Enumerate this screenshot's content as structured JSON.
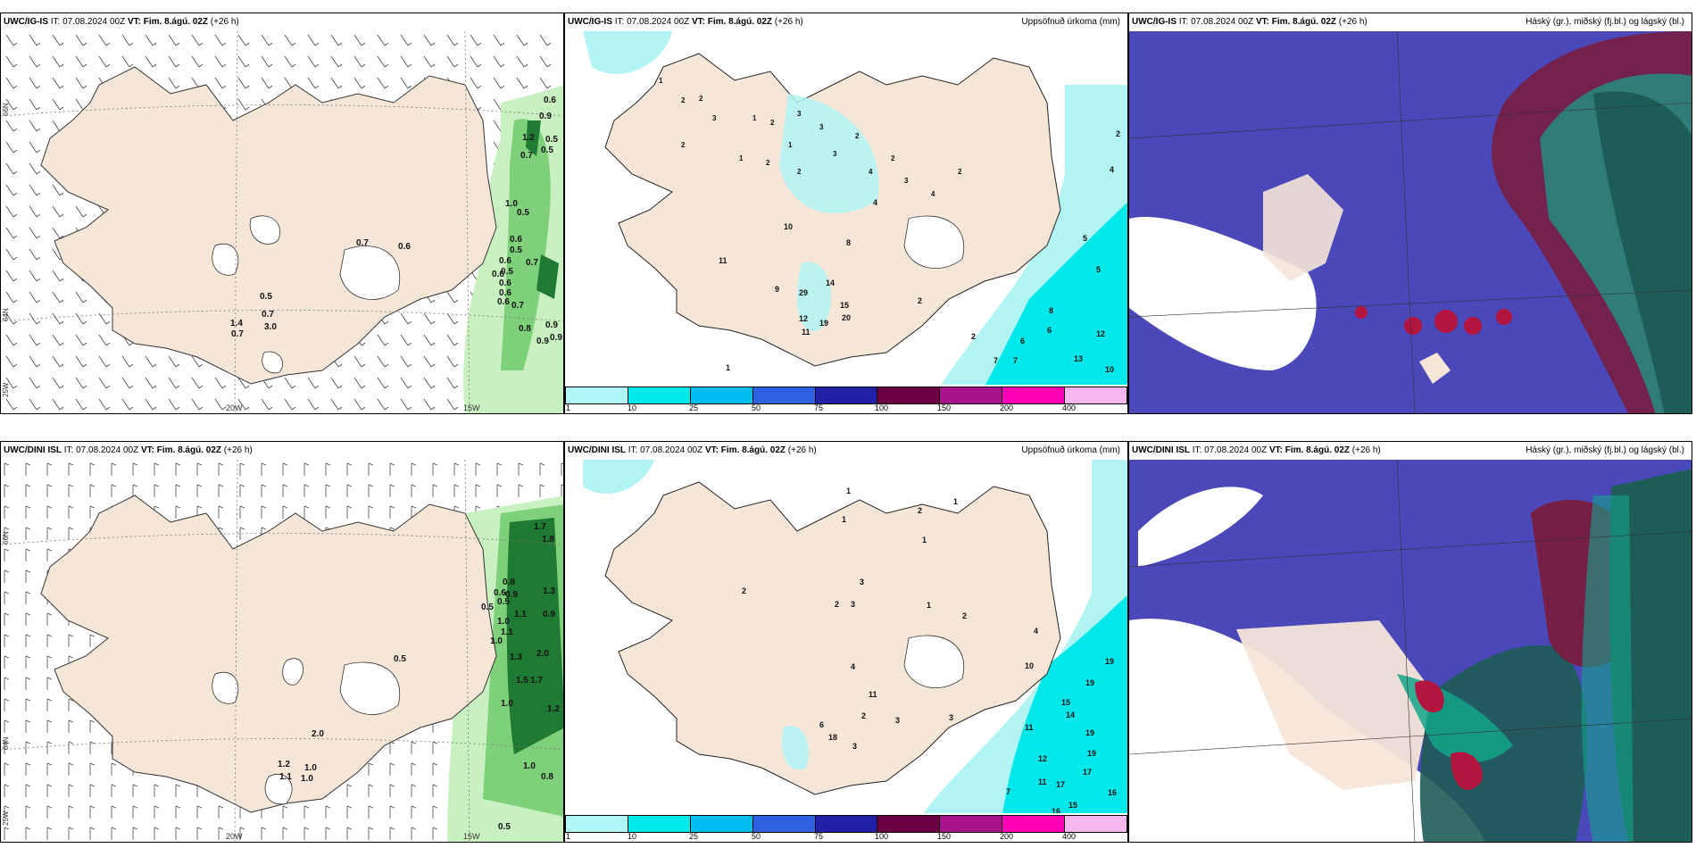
{
  "colors": {
    "land": "#f5e6d8",
    "precip_light": "#b2f3f3",
    "precip_mid": "#00e8ea",
    "wind_green_light": "#c8f0c0",
    "wind_green_mid": "#7ed07a",
    "wind_green_dark": "#1f7a33",
    "cloud_high": "#7a1a3a",
    "cloud_mid": "#13a48a",
    "cloud_low": "#4b49b9",
    "colorbar": [
      "#b0f8f8",
      "#00eaea",
      "#00bdf0",
      "#2f62e0",
      "#2121a8",
      "#6c0045",
      "#a8128c",
      "#ff00b4",
      "#f6b6ee"
    ]
  },
  "colorbar_labels": [
    "1",
    "10",
    "25",
    "50",
    "75",
    "100",
    "150",
    "200",
    "400"
  ],
  "panels": {
    "top_left": {
      "model": "UWC/IG-IS",
      "it_text": "IT: 07.08.2024 00Z",
      "vt_bold": "VT: Fim. 8.ágú. 02Z",
      "lead": "(+26 h)",
      "right_title": "",
      "lon_labels": [
        "20W",
        "15W"
      ],
      "lat_labels": [
        "66N",
        "64N",
        "25W"
      ],
      "values": [
        "0.6",
        "0.9",
        "1.2",
        "0.5",
        "0.5",
        "0.7",
        "1.0",
        "0.5",
        "0.6",
        "0.5",
        "0.6",
        "0.7",
        "0.5",
        "0.6",
        "0.6",
        "0.6",
        "0.6",
        "0.7",
        "0.8",
        "0.9",
        "0.9",
        "0.9",
        "0.7",
        "0.6",
        "0.5",
        "1.4",
        "0.7",
        "0.7",
        "3.0"
      ]
    },
    "top_mid": {
      "model": "UWC/IG-IS",
      "it_text": "IT: 07.08.2024 00Z",
      "vt_bold": "VT: Fim. 8.ágú. 02Z",
      "lead": "(+26 h)",
      "right_title": "Uppsöfnuð úrkoma (mm)",
      "values": [
        "1",
        "2",
        "2",
        "3",
        "1",
        "2",
        "2",
        "3",
        "3",
        "1",
        "1",
        "2",
        "2",
        "3",
        "2",
        "4",
        "2",
        "3",
        "4",
        "2",
        "29",
        "14",
        "15",
        "12",
        "19",
        "20",
        "10",
        "11",
        "9",
        "11",
        "12",
        "6",
        "8",
        "13",
        "10",
        "7",
        "7",
        "4",
        "5",
        "5",
        "2",
        "1",
        "2",
        "6",
        "8",
        "4",
        "2"
      ]
    },
    "top_right": {
      "model": "UWC/IG-IS",
      "it_text": "IT: 07.08.2024 00Z",
      "vt_bold": "VT: Fim. 8.ágú. 02Z",
      "lead": "(+26 h)",
      "right_title": "Háský (gr.), miðský (fj.bl.) og lágský (bl.)"
    },
    "bot_left": {
      "model": "UWC/DINI ISL",
      "it_text": "IT: 07.08.2024 00Z",
      "vt_bold": "VT: Fim. 8.ágú. 02Z",
      "lead": "(+26 h)",
      "right_title": "",
      "lon_labels": [
        "20W",
        "15W"
      ],
      "lat_labels": [
        "66N",
        "64N",
        "25W"
      ],
      "values": [
        "1.7",
        "1.8",
        "0.8",
        "0.6",
        "0.9",
        "1.3",
        "0.5",
        "1.1",
        "0.9",
        "1.0",
        "1.1",
        "1.0",
        "1.3",
        "2.0",
        "1.5",
        "1.7",
        "1.0",
        "1.2",
        "1.0",
        "0.8",
        "0.5",
        "0.5",
        "1.2",
        "1.1",
        "1.0",
        "1.0",
        "2.0",
        "0.5"
      ]
    },
    "bot_mid": {
      "model": "UWC/DINI ISL",
      "it_text": "IT: 07.08.2024 00Z",
      "vt_bold": "VT: Fim. 8.ágú. 02Z",
      "lead": "(+26 h)",
      "right_title": "Uppsöfnuð úrkoma (mm)",
      "values": [
        "1",
        "1",
        "2",
        "1",
        "1",
        "3",
        "2",
        "2",
        "3",
        "1",
        "2",
        "4",
        "11",
        "6",
        "18",
        "3",
        "2",
        "19",
        "19",
        "15",
        "14",
        "19",
        "19",
        "17",
        "17",
        "16",
        "15",
        "16",
        "11",
        "12",
        "11",
        "7",
        "3",
        "10",
        "3",
        "4"
      ]
    },
    "bot_right": {
      "model": "UWC/DINI ISL",
      "it_text": "IT: 07.08.2024 00Z",
      "vt_bold": "VT: Fim. 8.ágú. 02Z",
      "lead": "(+26 h)",
      "right_title": "Háský (gr.), miðský (fj.bl.) og lágský (bl.)"
    }
  }
}
